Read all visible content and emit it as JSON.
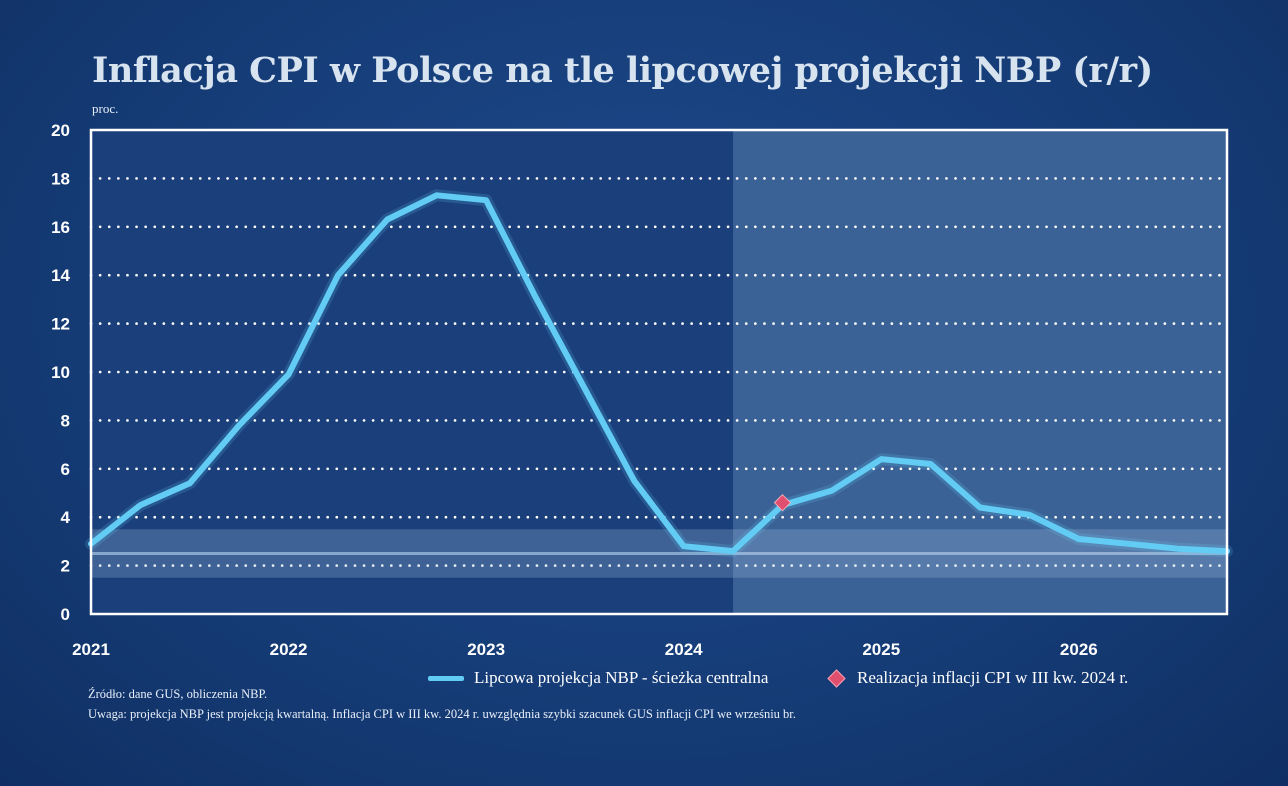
{
  "chart_data": {
    "type": "line",
    "title": "Inflacja CPI w Polsce na tle lipcowej projekcji NBP (r/r)",
    "ylabel": "proc.",
    "xlabel": "",
    "ylim": [
      0,
      20
    ],
    "yticks": [
      0,
      2,
      4,
      6,
      8,
      10,
      12,
      14,
      16,
      18,
      20
    ],
    "xlim": [
      2021.0,
      2026.75
    ],
    "xticks": [
      "2021",
      "2022",
      "2023",
      "2024",
      "2025",
      "2026"
    ],
    "projection_start": 2024.25,
    "target_band": {
      "center": 2.5,
      "low": 1.5,
      "high": 3.5
    },
    "grid": true,
    "series": [
      {
        "name": "Lipcowa projekcja NBP - ścieżka centralna",
        "color": "#63ccf4",
        "x": [
          2021.0,
          2021.25,
          2021.5,
          2021.75,
          2022.0,
          2022.25,
          2022.5,
          2022.75,
          2023.0,
          2023.25,
          2023.5,
          2023.75,
          2024.0,
          2024.25,
          2024.5,
          2024.75,
          2025.0,
          2025.25,
          2025.5,
          2025.75,
          2026.0,
          2026.25,
          2026.5,
          2026.75
        ],
        "values": [
          2.9,
          4.5,
          5.4,
          7.8,
          9.9,
          14.0,
          16.3,
          17.3,
          17.1,
          13.1,
          9.3,
          5.5,
          2.8,
          2.6,
          4.5,
          5.1,
          6.4,
          6.2,
          4.4,
          4.1,
          3.1,
          2.9,
          2.7,
          2.6
        ]
      }
    ],
    "points": [
      {
        "name": "Realizacja inflacji CPI w III kw. 2024 r.",
        "x": 2024.5,
        "value": 4.6,
        "color": "#e0506e"
      }
    ]
  },
  "legend": {
    "line_label": "Lipcowa projekcja NBP - ścieżka centralna",
    "point_label": "Realizacja inflacji CPI w III kw. 2024 r."
  },
  "notes": {
    "source": "Źródło: dane GUS, obliczenia NBP.",
    "remark": "Uwaga: projekcja NBP jest projekcją kwartalną. Inflacja CPI w III kw. 2024 r. uwzględnia szybki szacunek GUS inflacji CPI we wrześniu br."
  }
}
